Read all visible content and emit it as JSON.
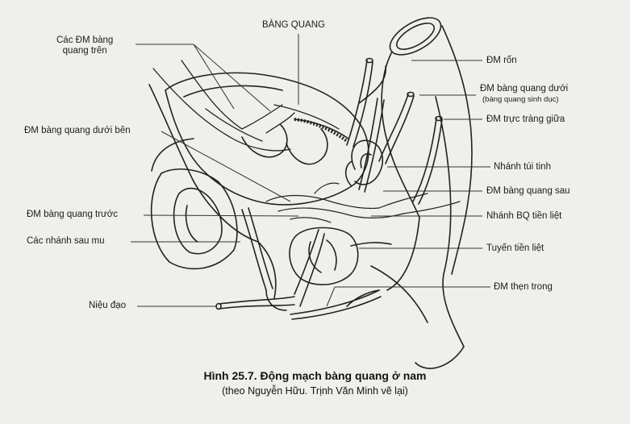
{
  "labels": {
    "bladder": "BÀNG QUANG",
    "superior_vesical_1": "Các ĐM bàng",
    "superior_vesical_2": "quang trên",
    "inferolateral_vesical": "ĐM bàng quang dưới bên",
    "anterior_vesical": "ĐM bàng quang trước",
    "retropubic_branches": "Các nhánh sau mu",
    "urethra": "Niệu đạo",
    "umbilical_artery": "ĐM rốn",
    "inferior_vesical": "ĐM bàng quang dưới",
    "inferior_vesical_note": "(bàng quang sinh dục)",
    "middle_rectal": "ĐM trực tràng giữa",
    "seminal_vesicle_branch": "Nhánh túi tinh",
    "posterior_vesical": "ĐM bàng quang sau",
    "bladder_prostate_branch": "Nhánh BQ tiền liệt",
    "prostate": "Tuyến tiền liệt",
    "internal_pudendal": "ĐM thẹn trong"
  },
  "caption": {
    "title": "Hình 25.7. Động mạch bàng quang ở nam",
    "subtitle": "(theo Nguyễn Hữu. Trịnh Văn Minh vẽ lại)"
  }
}
